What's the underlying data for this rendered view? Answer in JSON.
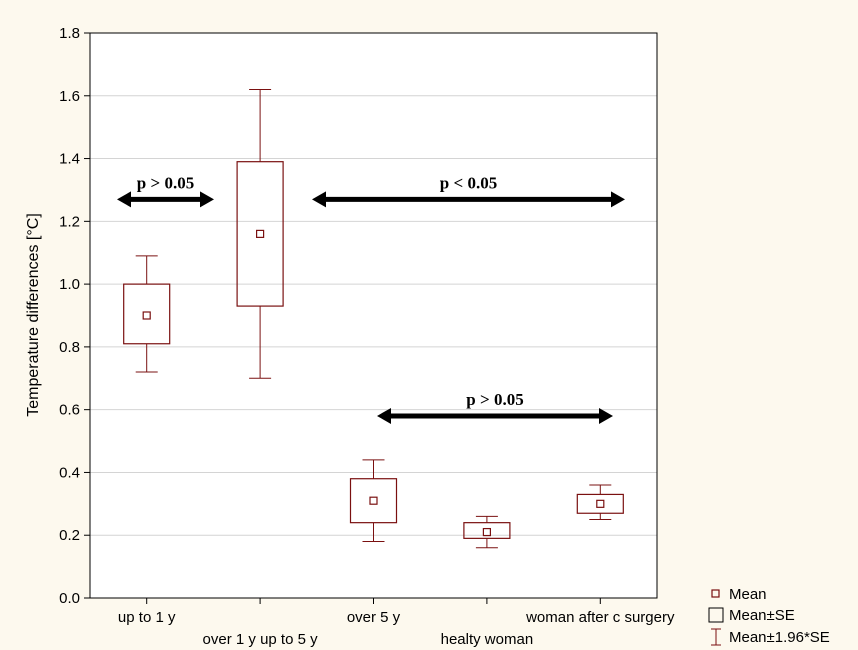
{
  "chart_data": {
    "type": "box",
    "ylabel": "Temperature differences [°C]",
    "ylim": [
      0.0,
      1.8
    ],
    "yticks": [
      0.0,
      0.2,
      0.4,
      0.6,
      0.8,
      1.0,
      1.2,
      1.4,
      1.6,
      1.8
    ],
    "ytick_labels": [
      "0.0",
      "0.2",
      "0.4",
      "0.6",
      "0.8",
      "1.0",
      "1.2",
      "1.4",
      "1.6",
      "1.8"
    ],
    "grid": true,
    "categories": [
      "up to 1 y",
      "over 1 y up to 5 y",
      "over 5 y",
      "healty woman",
      "woman after c surgery"
    ],
    "groups": [
      {
        "category": "up to 1 y",
        "mean": 0.9,
        "se_low": 0.81,
        "se_high": 1.0,
        "ci_low": 0.72,
        "ci_high": 1.09
      },
      {
        "category": "over 1 y up to 5 y",
        "mean": 1.16,
        "se_low": 0.93,
        "se_high": 1.39,
        "ci_low": 0.7,
        "ci_high": 1.62
      },
      {
        "category": "over 5 y",
        "mean": 0.31,
        "se_low": 0.24,
        "se_high": 0.38,
        "ci_low": 0.18,
        "ci_high": 0.44
      },
      {
        "category": "healty woman",
        "mean": 0.21,
        "se_low": 0.19,
        "se_high": 0.24,
        "ci_low": 0.16,
        "ci_high": 0.26
      },
      {
        "category": "woman after c surgery",
        "mean": 0.3,
        "se_low": 0.27,
        "se_high": 0.33,
        "ci_low": 0.25,
        "ci_high": 0.36
      }
    ],
    "annotations": [
      {
        "text": "p > 0.05",
        "y": 1.27,
        "from_category": 0,
        "to_category": 1
      },
      {
        "text": "p < 0.05",
        "y": 1.27,
        "from_category": 1,
        "to_category": 4
      },
      {
        "text": "p > 0.05",
        "y": 0.58,
        "from_category": 2,
        "to_category": 4
      }
    ],
    "legend": {
      "position": "bottom-right",
      "items": [
        "Mean",
        "Mean±SE",
        "Mean±1.96*SE"
      ]
    },
    "colors": {
      "box": "#7a1010",
      "grid": "#d4d4d4",
      "arrow": "#000000",
      "plot_bg": "#ffffff"
    }
  }
}
